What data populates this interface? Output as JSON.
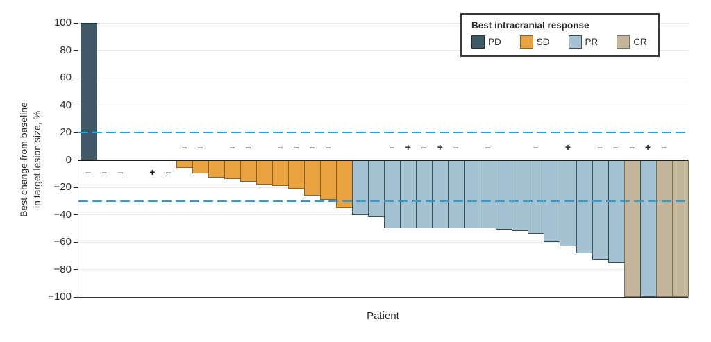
{
  "colors": {
    "background": "#ffffff",
    "dashed_reference": "#2d9fd6",
    "grid": "#e8e8e8",
    "axis": "#2b2b2b",
    "text": "#2b2b2b"
  },
  "chart_data": {
    "type": "bar",
    "title": "",
    "xlabel": "Patient",
    "ylabel": "Best change from baseline in target lesion size, %",
    "ylabel_lines": [
      "Best change from baseline",
      "in target lesion size, %"
    ],
    "ylim": [
      -100,
      100
    ],
    "yticks": [
      {
        "value": 100,
        "label": "100"
      },
      {
        "value": 80,
        "label": "80"
      },
      {
        "value": 60,
        "label": "60"
      },
      {
        "value": 40,
        "label": "40"
      },
      {
        "value": 20,
        "label": "20"
      },
      {
        "value": 0,
        "label": "0"
      },
      {
        "value": -20,
        "label": "−20"
      },
      {
        "value": -40,
        "label": "−40"
      },
      {
        "value": -60,
        "label": "−60"
      },
      {
        "value": -80,
        "label": "−80"
      },
      {
        "value": -100,
        "label": "−100"
      }
    ],
    "gridlines": [
      100,
      80,
      60,
      40,
      -20,
      -40,
      -60,
      -80
    ],
    "reference_lines": [
      20,
      -30
    ],
    "grid": true,
    "legend_position": "top-right",
    "legend": {
      "title": "Best intracranial response",
      "entries": [
        {
          "label": "PD",
          "fill": "#3d5a66",
          "border": "#1e2f37"
        },
        {
          "label": "SD",
          "fill": "#e9a340",
          "border": "#8a6425"
        },
        {
          "label": "PR",
          "fill": "#a5c2d2",
          "border": "#3c4e57"
        },
        {
          "label": "CR",
          "fill": "#c4b69b",
          "border": "#7c735a"
        }
      ]
    },
    "patients": [
      {
        "response": "PD",
        "value": 100,
        "sign": "-"
      },
      {
        "response": "",
        "value": 0,
        "sign": "-"
      },
      {
        "response": "",
        "value": 0,
        "sign": "-"
      },
      {
        "response": "",
        "value": 0,
        "sign": ""
      },
      {
        "response": "",
        "value": 0,
        "sign": "+"
      },
      {
        "response": "",
        "value": 0,
        "sign": "-"
      },
      {
        "response": "SD",
        "value": -6,
        "sign": "-"
      },
      {
        "response": "SD",
        "value": -10,
        "sign": "-"
      },
      {
        "response": "SD",
        "value": -13,
        "sign": ""
      },
      {
        "response": "SD",
        "value": -14,
        "sign": "-"
      },
      {
        "response": "SD",
        "value": -16,
        "sign": "-"
      },
      {
        "response": "SD",
        "value": -18,
        "sign": ""
      },
      {
        "response": "SD",
        "value": -19,
        "sign": "-"
      },
      {
        "response": "SD",
        "value": -21,
        "sign": "-"
      },
      {
        "response": "SD",
        "value": -26,
        "sign": "-"
      },
      {
        "response": "SD",
        "value": -29,
        "sign": "-"
      },
      {
        "response": "SD",
        "value": -35,
        "sign": ""
      },
      {
        "response": "PR",
        "value": -40,
        "sign": ""
      },
      {
        "response": "PR",
        "value": -42,
        "sign": ""
      },
      {
        "response": "PR",
        "value": -50,
        "sign": "-"
      },
      {
        "response": "PR",
        "value": -50,
        "sign": "+"
      },
      {
        "response": "PR",
        "value": -50,
        "sign": "-"
      },
      {
        "response": "PR",
        "value": -50,
        "sign": "+"
      },
      {
        "response": "PR",
        "value": -50,
        "sign": "-"
      },
      {
        "response": "PR",
        "value": -50,
        "sign": ""
      },
      {
        "response": "PR",
        "value": -50,
        "sign": "-"
      },
      {
        "response": "PR",
        "value": -51,
        "sign": ""
      },
      {
        "response": "PR",
        "value": -52,
        "sign": ""
      },
      {
        "response": "PR",
        "value": -54,
        "sign": "-"
      },
      {
        "response": "PR",
        "value": -60,
        "sign": ""
      },
      {
        "response": "PR",
        "value": -63,
        "sign": "+"
      },
      {
        "response": "PR",
        "value": -68,
        "sign": ""
      },
      {
        "response": "PR",
        "value": -73,
        "sign": "-"
      },
      {
        "response": "PR",
        "value": -75,
        "sign": "-"
      },
      {
        "response": "CR",
        "value": -100,
        "sign": "-"
      },
      {
        "response": "PR",
        "value": -100,
        "sign": "+"
      },
      {
        "response": "CR",
        "value": -100,
        "sign": "-"
      },
      {
        "response": "CR",
        "value": -100,
        "sign": ""
      }
    ]
  }
}
